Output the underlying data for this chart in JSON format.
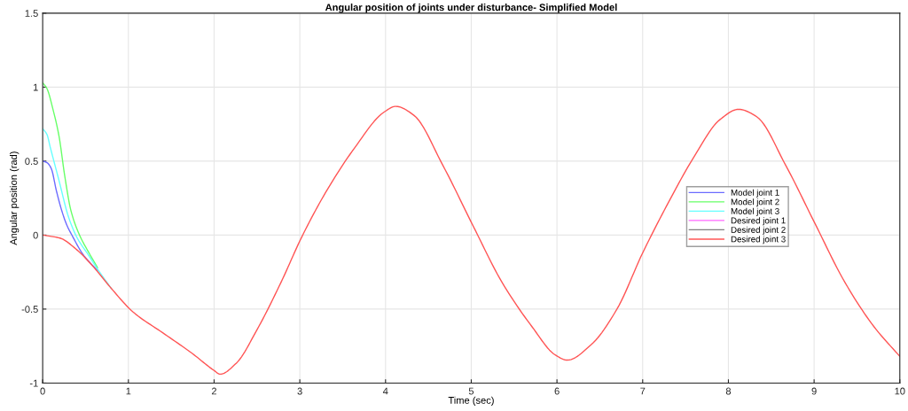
{
  "chart_data": {
    "type": "line",
    "title": "Angular position of joints under disturbance- Simplified Model",
    "xlabel": "Time (sec)",
    "ylabel": "Angular position (rad)",
    "xlim": [
      0,
      10
    ],
    "xticks": [
      0,
      1,
      2,
      3,
      4,
      5,
      6,
      7,
      8,
      9,
      10
    ],
    "ylim": [
      -1,
      1.5
    ],
    "yticks": [
      -1,
      -0.5,
      0,
      0.5,
      1,
      1.5
    ],
    "grid": true,
    "legend": "right",
    "line_style": "solid",
    "marker": "none",
    "series": [
      {
        "name": "Model joint 1",
        "color": "#6b6bff",
        "x": [
          0,
          0.05,
          0.1,
          0.16,
          0.22,
          0.28,
          0.35,
          0.47,
          0.64
        ],
        "values": [
          0.5,
          0.49,
          0.45,
          0.3,
          0.17,
          0.07,
          -0.01,
          -0.13,
          -0.24
        ]
      },
      {
        "name": "Model joint 2",
        "color": "#66ff66",
        "x": [
          0,
          0.05,
          0.12,
          0.19,
          0.26,
          0.33,
          0.43,
          0.54,
          0.64
        ],
        "values": [
          1.03,
          0.99,
          0.85,
          0.67,
          0.39,
          0.165,
          0.0,
          -0.12,
          -0.22
        ]
      },
      {
        "name": "Model joint 3",
        "color": "#66ffff",
        "x": [
          0,
          0.05,
          0.09,
          0.19,
          0.3,
          0.4,
          0.54,
          0.64,
          0.8
        ],
        "values": [
          0.72,
          0.68,
          0.59,
          0.37,
          0.125,
          -0.016,
          -0.14,
          -0.23,
          -0.36
        ]
      },
      {
        "name": "Desired joint 1",
        "color": "#ff66ff"
      },
      {
        "name": "Desired joint 2",
        "color": "#808080"
      },
      {
        "name": "Desired joint 3",
        "color": "#ff5555",
        "x": [
          0,
          0.2,
          0.4,
          0.6,
          0.8,
          1.055,
          1.4,
          1.745,
          2.0,
          2.07,
          2.26,
          2.5,
          2.78,
          3.02,
          3.3,
          3.64,
          3.98,
          4.12,
          4.33,
          4.67,
          5.02,
          5.36,
          5.71,
          5.98,
          6.12,
          6.4,
          6.7,
          7.0,
          7.3,
          7.6,
          7.9,
          8.12,
          8.33,
          8.67,
          9.0,
          9.36,
          9.7,
          10
        ],
        "values": [
          0,
          -0.02,
          -0.1,
          -0.22,
          -0.36,
          -0.52,
          -0.66,
          -0.8,
          -0.915,
          -0.94,
          -0.865,
          -0.64,
          -0.32,
          -0.016,
          0.287,
          0.59,
          0.83,
          0.87,
          0.81,
          0.47,
          0.064,
          -0.32,
          -0.62,
          -0.81,
          -0.845,
          -0.74,
          -0.5,
          -0.12,
          0.22,
          0.53,
          0.78,
          0.85,
          0.8,
          0.47,
          0.09,
          -0.32,
          -0.62,
          -0.82
        ]
      }
    ]
  }
}
